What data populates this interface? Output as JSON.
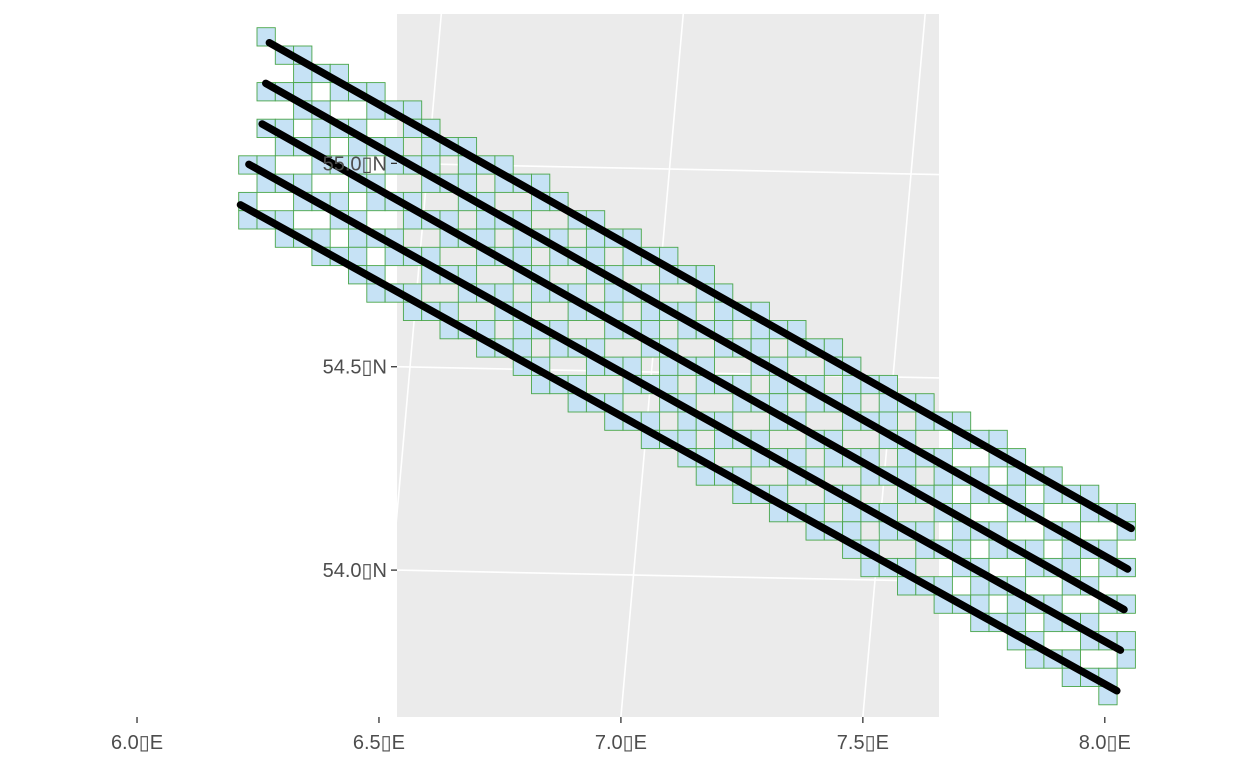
{
  "chart_data": {
    "type": "map",
    "title": "",
    "xlabel": "",
    "ylabel": "",
    "x_ticks": [
      {
        "value": 6.0,
        "label": "6.0▯E"
      },
      {
        "value": 6.5,
        "label": "6.5▯E"
      },
      {
        "value": 7.0,
        "label": "7.0▯E"
      },
      {
        "value": 7.5,
        "label": "7.5▯E"
      },
      {
        "value": 8.0,
        "label": "8.0▯E"
      }
    ],
    "y_ticks": [
      {
        "value": 55.0,
        "label": "55.0▯N"
      },
      {
        "value": 54.5,
        "label": "54.5▯N"
      },
      {
        "value": 54.0,
        "label": "54.0▯N"
      }
    ],
    "xlim": [
      5.96,
      8.19
    ],
    "ylim": [
      53.66,
      55.31
    ],
    "grid": true,
    "legend": "none",
    "colors": {
      "panel_background": "#ebebeb",
      "grid_line": "#ffffff",
      "cell_fill": "#c6e2f5",
      "cell_border": "#4aa64a",
      "track_line": "#000000",
      "tick_text": "#4d4d4d",
      "tick_mark": "#333333"
    },
    "series": [
      {
        "geometry": "line",
        "lon": [
          6.15,
          8.02
        ],
        "lat": [
          55.29,
          54.14
        ]
      },
      {
        "geometry": "line",
        "lon": [
          6.15,
          8.02
        ],
        "lat": [
          55.19,
          54.04
        ]
      },
      {
        "geometry": "line",
        "lon": [
          6.15,
          8.02
        ],
        "lat": [
          55.09,
          53.94
        ]
      },
      {
        "geometry": "line",
        "lon": [
          6.13,
          8.02
        ],
        "lat": [
          54.99,
          53.84
        ]
      },
      {
        "geometry": "line",
        "lon": [
          6.12,
          8.02
        ],
        "lat": [
          54.89,
          53.74
        ]
      }
    ],
    "cells": {
      "geometry": "grid",
      "cell_size_deg": 0.045,
      "coverage": "grid cells intersected by the track lines"
    }
  }
}
